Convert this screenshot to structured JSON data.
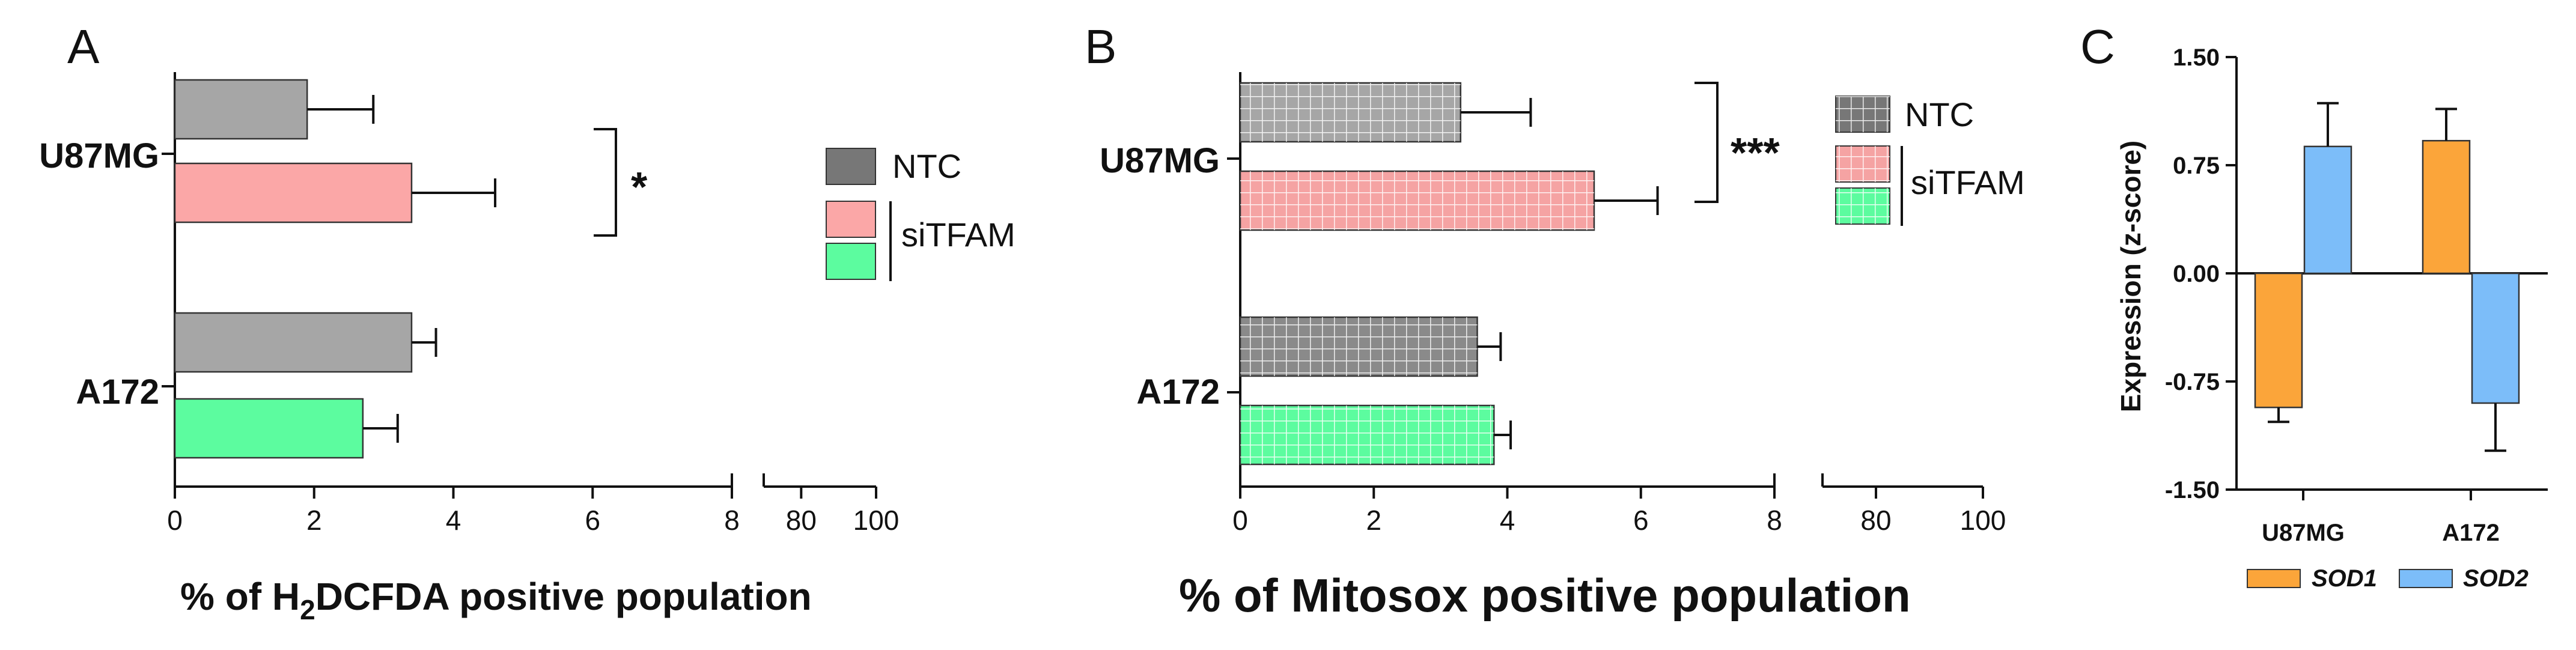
{
  "figure": {
    "panels": {
      "A": "A",
      "B": "B",
      "C": "C"
    }
  },
  "chart_data": [
    {
      "panel": "A",
      "type": "bar",
      "orientation": "horizontal",
      "categories": [
        "U87MG",
        "A172"
      ],
      "bars": [
        {
          "category": "U87MG",
          "group": "NTC",
          "value": 1.9,
          "error": 0.95,
          "color": "#a6a6a6"
        },
        {
          "category": "U87MG",
          "group": "siTFAM",
          "value": 3.4,
          "error": 1.2,
          "color": "#fba7a7"
        },
        {
          "category": "A172",
          "group": "NTC",
          "value": 3.4,
          "error": 0.35,
          "color": "#a6a6a6"
        },
        {
          "category": "A172",
          "group": "siTFAM",
          "value": 2.7,
          "error": 0.5,
          "color": "#5cfc9f"
        }
      ],
      "xlabel_parts": [
        "% of H",
        "2",
        "DCFDA positive population"
      ],
      "x_ticks_segment1": [
        "0",
        "2",
        "4",
        "6",
        "8"
      ],
      "x_ticks_segment2": [
        "80",
        "100"
      ],
      "xlim_segment1": [
        0,
        8
      ],
      "xlim_segment2": [
        70,
        100
      ],
      "axis_break": true,
      "legend": {
        "entries": [
          {
            "label": "NTC",
            "color": "#777777"
          },
          {
            "label": "",
            "color": "#fba7a7"
          },
          {
            "label": "",
            "color": "#5cfc9f"
          }
        ],
        "group_label": "siTFAM",
        "placement": "right"
      },
      "significance": {
        "label": "*",
        "category": "U87MG"
      }
    },
    {
      "panel": "B",
      "type": "bar",
      "orientation": "horizontal",
      "pattern": "grid",
      "categories": [
        "U87MG",
        "A172"
      ],
      "bars": [
        {
          "category": "U87MG",
          "group": "NTC",
          "value": 3.3,
          "error": 1.05,
          "color": "#a6a6a6"
        },
        {
          "category": "U87MG",
          "group": "siTFAM",
          "value": 5.3,
          "error": 0.95,
          "color": "#f5a3a3"
        },
        {
          "category": "A172",
          "group": "NTC",
          "value": 3.55,
          "error": 0.35,
          "color": "#8a8a8a"
        },
        {
          "category": "A172",
          "group": "siTFAM",
          "value": 3.8,
          "error": 0.25,
          "color": "#5cfc9f"
        }
      ],
      "xlabel": "% of Mitosox positive population",
      "x_ticks_segment1": [
        "0",
        "2",
        "4",
        "6",
        "8"
      ],
      "x_ticks_segment2": [
        "80",
        "100"
      ],
      "xlim_segment1": [
        0,
        8
      ],
      "xlim_segment2": [
        70,
        100
      ],
      "axis_break": true,
      "legend": {
        "entries": [
          {
            "label": "NTC",
            "color": "#777777"
          },
          {
            "label": "",
            "color": "#f5a3a3"
          },
          {
            "label": "",
            "color": "#5cfc9f"
          }
        ],
        "group_label": "siTFAM",
        "placement": "right"
      },
      "significance": {
        "label": "***",
        "category": "U87MG"
      }
    },
    {
      "panel": "C",
      "type": "bar",
      "orientation": "vertical",
      "categories": [
        "U87MG",
        "A172"
      ],
      "series": [
        {
          "name": "SOD1",
          "values": [
            -0.93,
            0.92
          ],
          "errors": [
            0.1,
            0.22
          ],
          "color": "#fba53a"
        },
        {
          "name": "SOD2",
          "values": [
            0.88,
            -0.9
          ],
          "errors": [
            0.3,
            0.33
          ],
          "color": "#7cbdf9"
        }
      ],
      "ylabel": "Expression (z-score)",
      "y_ticks": [
        "1.50",
        "0.75",
        "0.00",
        "-0.75",
        "-1.50"
      ],
      "ylim": [
        -1.5,
        1.5
      ],
      "legend": {
        "placement": "bottom"
      }
    }
  ]
}
